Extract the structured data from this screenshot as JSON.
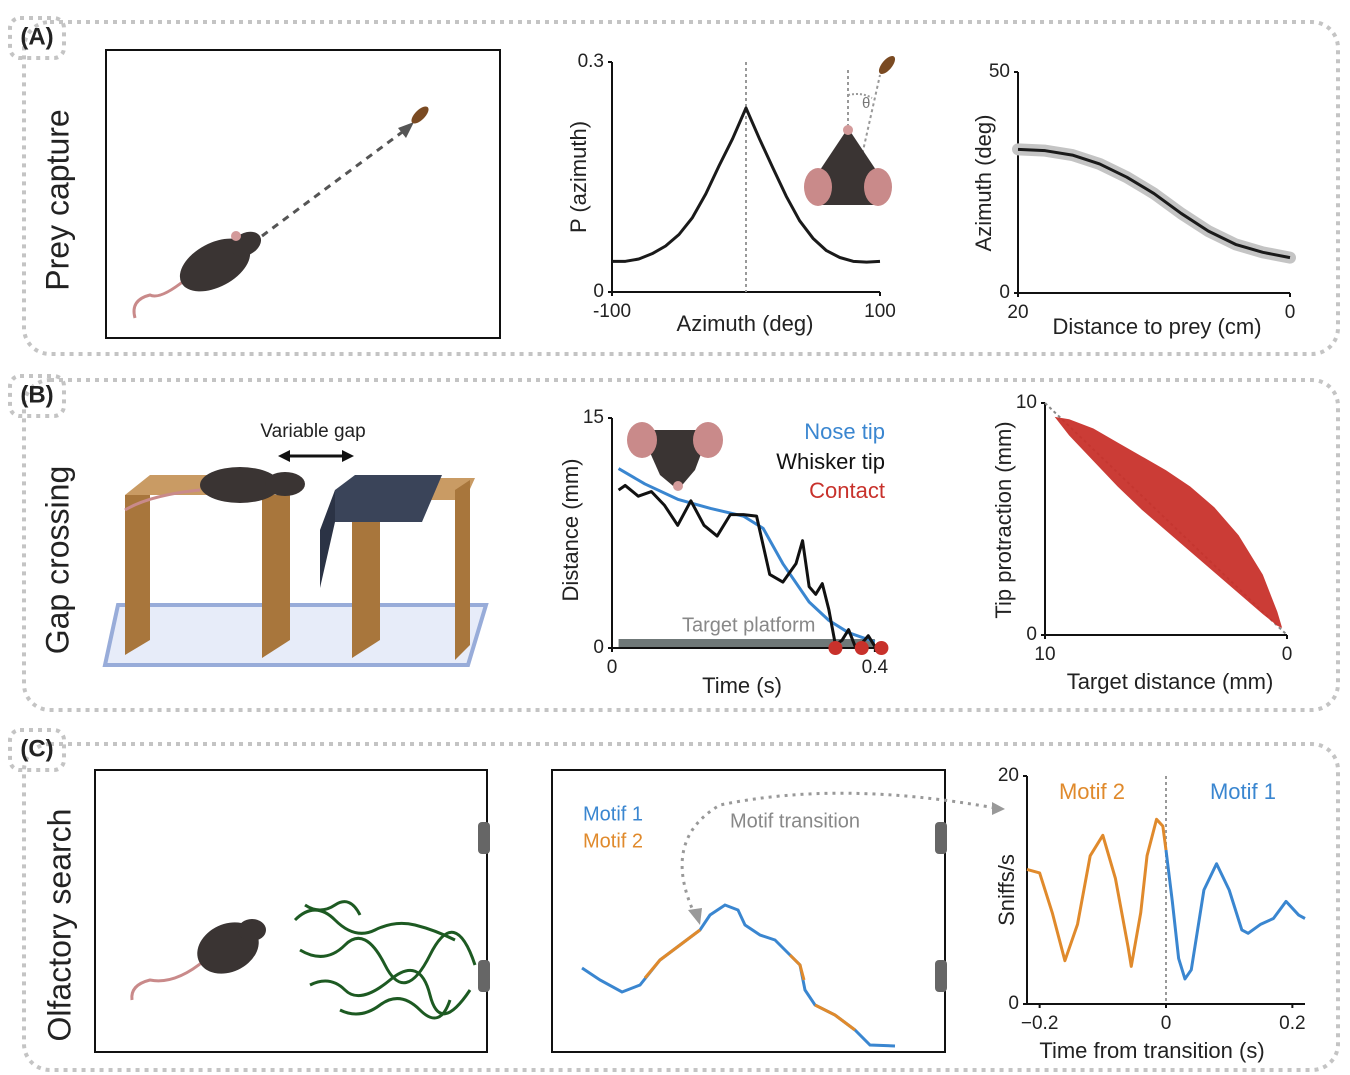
{
  "panels": [
    {
      "label": "(A)",
      "title": "Prey capture"
    },
    {
      "label": "(B)",
      "title": "Gap crossing",
      "annotation": "Variable gap"
    },
    {
      "label": "(C)",
      "title": "Olfactory search",
      "legend": [
        "Motif 1",
        "Motif 2"
      ],
      "annotation": "Motif transition"
    }
  ],
  "chart_data": [
    {
      "type": "line",
      "xlabel": "Azimuth (deg)",
      "ylabel": "P (azimuth)",
      "xlim": [
        -100,
        100
      ],
      "xticks": [
        -100,
        100
      ],
      "ylim": [
        0,
        0.3
      ],
      "yticks": [
        0,
        0.3
      ],
      "vline": 0,
      "series": [
        {
          "color": "#1a1a1a",
          "x": [
            -100,
            -90,
            -80,
            -70,
            -60,
            -50,
            -40,
            -30,
            -20,
            -10,
            0,
            10,
            20,
            30,
            40,
            50,
            60,
            70,
            80,
            90,
            100
          ],
          "values": [
            0.04,
            0.04,
            0.043,
            0.05,
            0.06,
            0.075,
            0.097,
            0.128,
            0.165,
            0.2,
            0.24,
            0.2,
            0.162,
            0.125,
            0.093,
            0.07,
            0.054,
            0.045,
            0.04,
            0.039,
            0.04
          ]
        }
      ]
    },
    {
      "type": "line",
      "xlabel": "Distance to prey (cm)",
      "ylabel": "Azimuth (deg)",
      "xlim": [
        20,
        0
      ],
      "xticks": [
        20,
        0
      ],
      "ylim": [
        0,
        50
      ],
      "yticks": [
        0,
        50
      ],
      "band": true,
      "series": [
        {
          "color": "#1a1a1a",
          "x": [
            20,
            18,
            16,
            14,
            12,
            10,
            8,
            6,
            4,
            2,
            0
          ],
          "values": [
            32.5,
            32.2,
            31.2,
            29.2,
            26.2,
            22.5,
            18,
            14,
            11,
            9.2,
            8
          ]
        }
      ]
    },
    {
      "type": "line",
      "xlabel": "Time (s)",
      "ylabel": "Distance (mm)",
      "xlim": [
        0,
        0.42
      ],
      "xticks": [
        0,
        0.4
      ],
      "ylim": [
        0,
        15
      ],
      "yticks": [
        0,
        15
      ],
      "platform_x": [
        0.01,
        0.4
      ],
      "platform_label": "Target platform",
      "series": [
        {
          "name": "Nose tip",
          "color": "#3a86d0",
          "x": [
            0.01,
            0.05,
            0.1,
            0.15,
            0.2,
            0.23,
            0.26,
            0.3,
            0.33,
            0.36,
            0.4
          ],
          "values": [
            11.7,
            10.7,
            9.7,
            9.1,
            8.6,
            7.8,
            5.5,
            3.0,
            1.8,
            1.0,
            0.4
          ]
        },
        {
          "name": "Whisker tip",
          "color": "#111111",
          "x": [
            0.01,
            0.02,
            0.04,
            0.06,
            0.08,
            0.1,
            0.12,
            0.14,
            0.16,
            0.18,
            0.2,
            0.22,
            0.24,
            0.26,
            0.28,
            0.29,
            0.3,
            0.31,
            0.32,
            0.33,
            0.34,
            0.35,
            0.36,
            0.37,
            0.38,
            0.39,
            0.4
          ],
          "values": [
            10.3,
            10.6,
            9.9,
            10.2,
            9.3,
            8.0,
            9.6,
            8.0,
            7.3,
            8.7,
            8.7,
            8.6,
            4.8,
            4.3,
            5.5,
            7.0,
            4.0,
            3.5,
            4.2,
            2.5,
            0.2,
            0.5,
            1.2,
            0.1,
            0.3,
            0.8,
            0.1
          ]
        },
        {
          "name": "Contact",
          "color": "#c8312b",
          "markers": true,
          "x": [
            0.34,
            0.38,
            0.41
          ],
          "values": [
            0,
            0,
            0
          ]
        }
      ]
    },
    {
      "type": "area",
      "xlabel": "Target distance (mm)",
      "ylabel": "Tip protraction (mm)",
      "xlim": [
        10,
        0
      ],
      "xticks": [
        10,
        0
      ],
      "ylim": [
        0,
        10
      ],
      "yticks": [
        0,
        10
      ],
      "diagonal": true,
      "color": "#c8312b",
      "x": [
        9.6,
        9,
        8,
        7,
        6,
        5,
        4,
        3,
        2,
        1,
        0.4,
        0.2
      ],
      "y_high": [
        9.4,
        9.3,
        8.9,
        8.3,
        7.7,
        7.1,
        6.4,
        5.5,
        4.3,
        2.6,
        1.0,
        0.3
      ],
      "y_low": [
        9.4,
        8.6,
        7.5,
        6.4,
        5.4,
        4.5,
        3.6,
        2.7,
        1.8,
        0.9,
        0.4,
        0.3
      ]
    },
    {
      "type": "line",
      "xlabel": "Time from transition (s)",
      "ylabel": "Sniffs/s",
      "xlim": [
        -0.22,
        0.22
      ],
      "xticks": [
        {
          "value": -0.2,
          "label": "−0.2"
        },
        0,
        0.2
      ],
      "ylim": [
        0,
        20
      ],
      "yticks": [
        0,
        20
      ],
      "vline": 0,
      "series": [
        {
          "name": "Motif 2",
          "color": "#e08a2c",
          "x": [
            -0.22,
            -0.2,
            -0.18,
            -0.16,
            -0.14,
            -0.12,
            -0.1,
            -0.08,
            -0.06,
            -0.055,
            -0.04,
            -0.03,
            -0.015,
            -0.005,
            0
          ],
          "values": [
            11.8,
            11.5,
            8,
            3.8,
            7,
            13,
            14.8,
            11,
            5,
            3.3,
            8,
            13,
            16.2,
            15.6,
            13.5
          ]
        },
        {
          "name": "Motif 1",
          "color": "#3a86d0",
          "x": [
            0,
            0.01,
            0.02,
            0.03,
            0.04,
            0.06,
            0.08,
            0.1,
            0.12,
            0.13,
            0.15,
            0.17,
            0.19,
            0.21,
            0.22
          ],
          "values": [
            13.5,
            9,
            4,
            2.2,
            3,
            10,
            12.3,
            10,
            6.5,
            6.2,
            7,
            7.5,
            9,
            7.8,
            7.5
          ]
        }
      ]
    }
  ]
}
